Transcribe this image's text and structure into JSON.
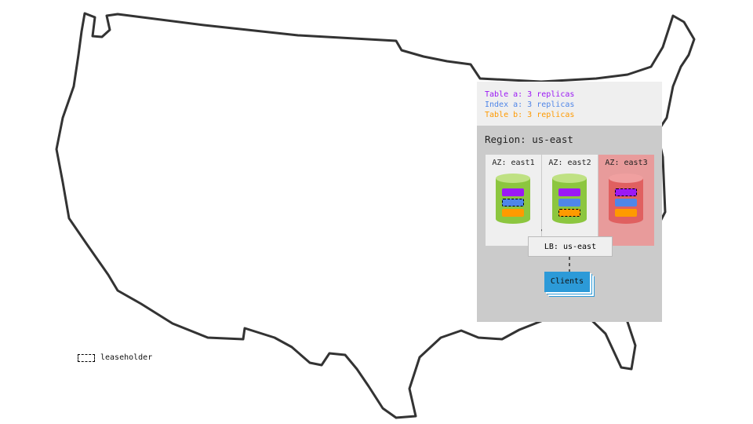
{
  "legend": {
    "items": [
      {
        "text": "Table a: 3 replicas",
        "color": "#9b19f5"
      },
      {
        "text": "Index a: 3 replicas",
        "color": "#4f86e8"
      },
      {
        "text": "Table b: 3 replicas",
        "color": "#ff9a00"
      }
    ]
  },
  "region": {
    "title": "Region: us-east",
    "zones": [
      {
        "label": "AZ: east1",
        "status": "healthy",
        "leaseholder": "Index a"
      },
      {
        "label": "AZ: east2",
        "status": "healthy",
        "leaseholder": "Table b"
      },
      {
        "label": "AZ: east3",
        "status": "failed",
        "leaseholder": "Table a"
      }
    ],
    "load_balancer": "LB: us-east",
    "clients": "Clients"
  },
  "key": {
    "leaseholder": "leaseholder"
  },
  "colors": {
    "healthy_node": "#8cc63f",
    "failed_node": "#e06060",
    "clients": "#2c9ad8"
  }
}
